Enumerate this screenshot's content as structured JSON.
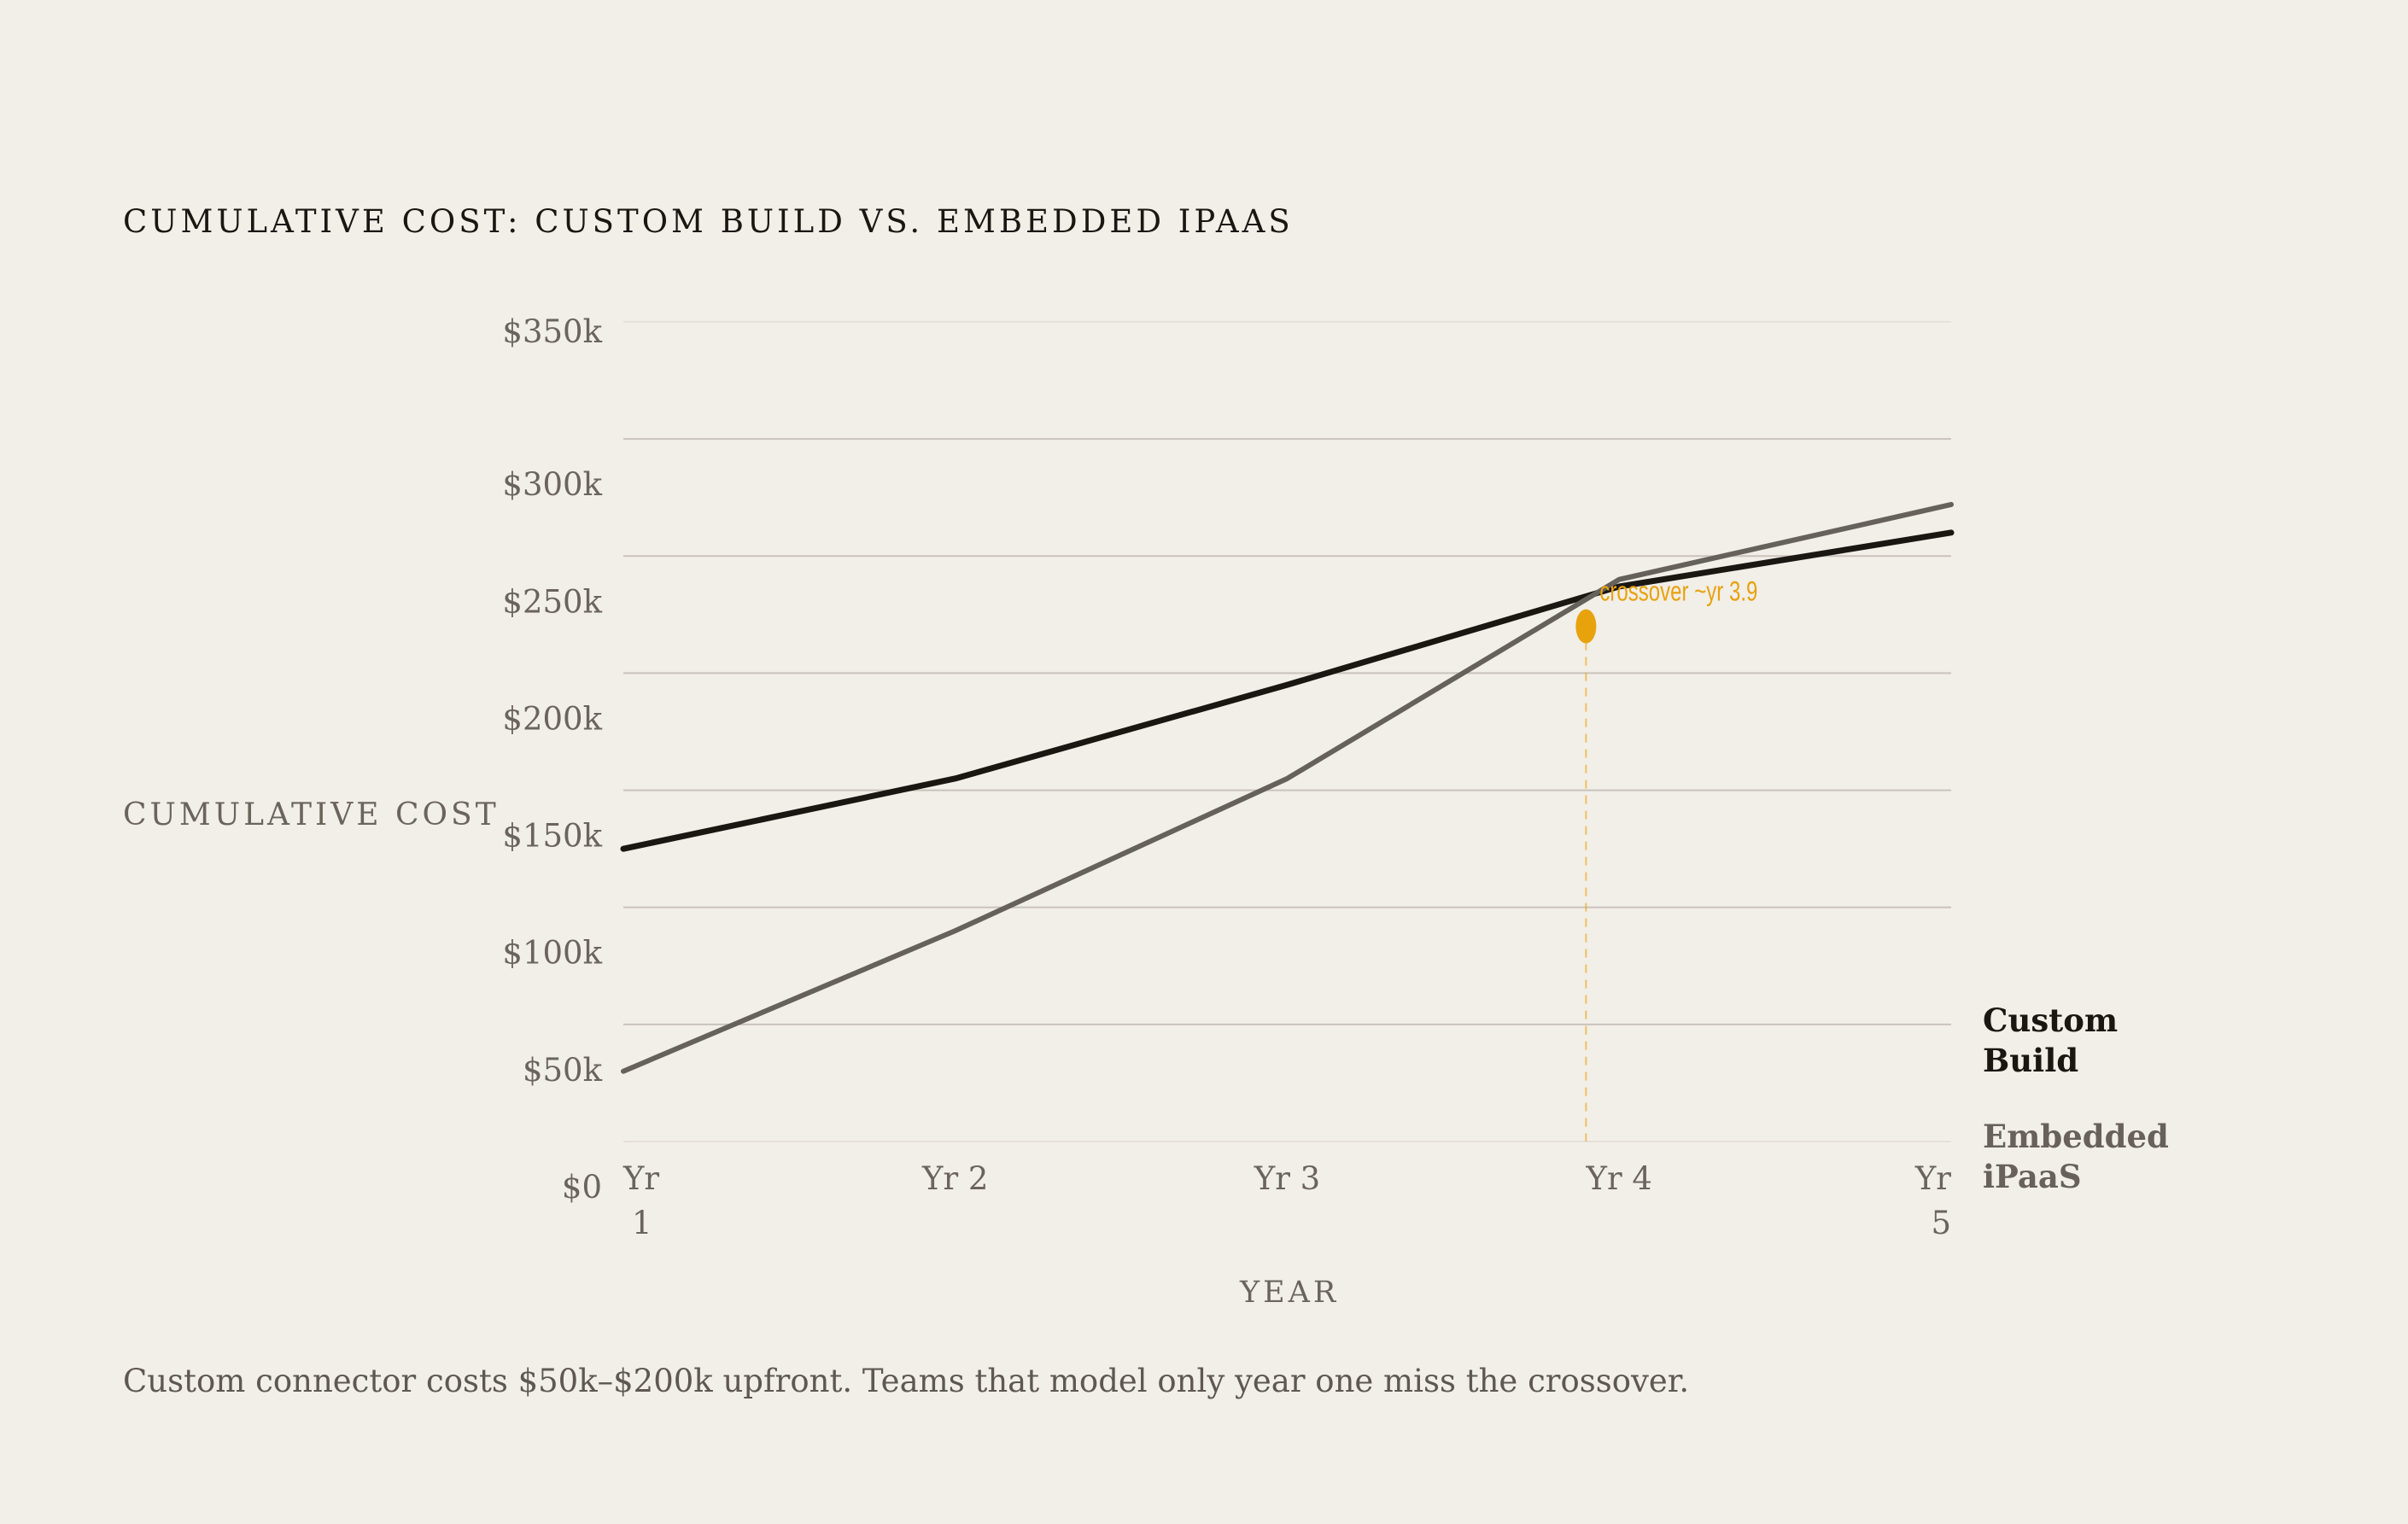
{
  "title": "CUMULATIVE COST: CUSTOM BUILD VS. EMBEDDED IPAAS",
  "caption": "Custom connector costs $50k–$200k upfront. Teams that model only year one miss the crossover.",
  "colors": {
    "custom": "#1a1612",
    "ipaas": "#67615b",
    "accent": "#e8a20c",
    "grid": "#c9c3bb",
    "tick": "#6b645d"
  },
  "legend": {
    "custom": [
      "Custom",
      "Build"
    ],
    "ipaas": [
      "Embedded",
      "iPaaS"
    ]
  },
  "chart_data": {
    "type": "line",
    "xlabel": "YEAR",
    "ylabel": "CUMULATIVE COST",
    "x": [
      1,
      2,
      3,
      4,
      5
    ],
    "x_tick_labels": [
      "Yr 1",
      "Yr 2",
      "Yr 3",
      "Yr 4",
      "Yr 5"
    ],
    "y_tick_labels": [
      "$0",
      "$50k",
      "$100k",
      "$150k",
      "$200k",
      "$250k",
      "$300k",
      "$350k"
    ],
    "y_ticks": [
      0,
      50,
      100,
      150,
      200,
      250,
      300,
      350
    ],
    "ylim": [
      0,
      350
    ],
    "xlim": [
      1,
      5
    ],
    "grid": true,
    "series": [
      {
        "name": "Custom Build",
        "key": "custom",
        "values": [
          125,
          155,
          195,
          237,
          260
        ]
      },
      {
        "name": "Embedded iPaaS",
        "key": "ipaas",
        "values": [
          30,
          90,
          155,
          240,
          272
        ]
      }
    ],
    "annotation": {
      "text": "crossover ~yr 3.9",
      "x": 3.9,
      "y": 220
    }
  }
}
